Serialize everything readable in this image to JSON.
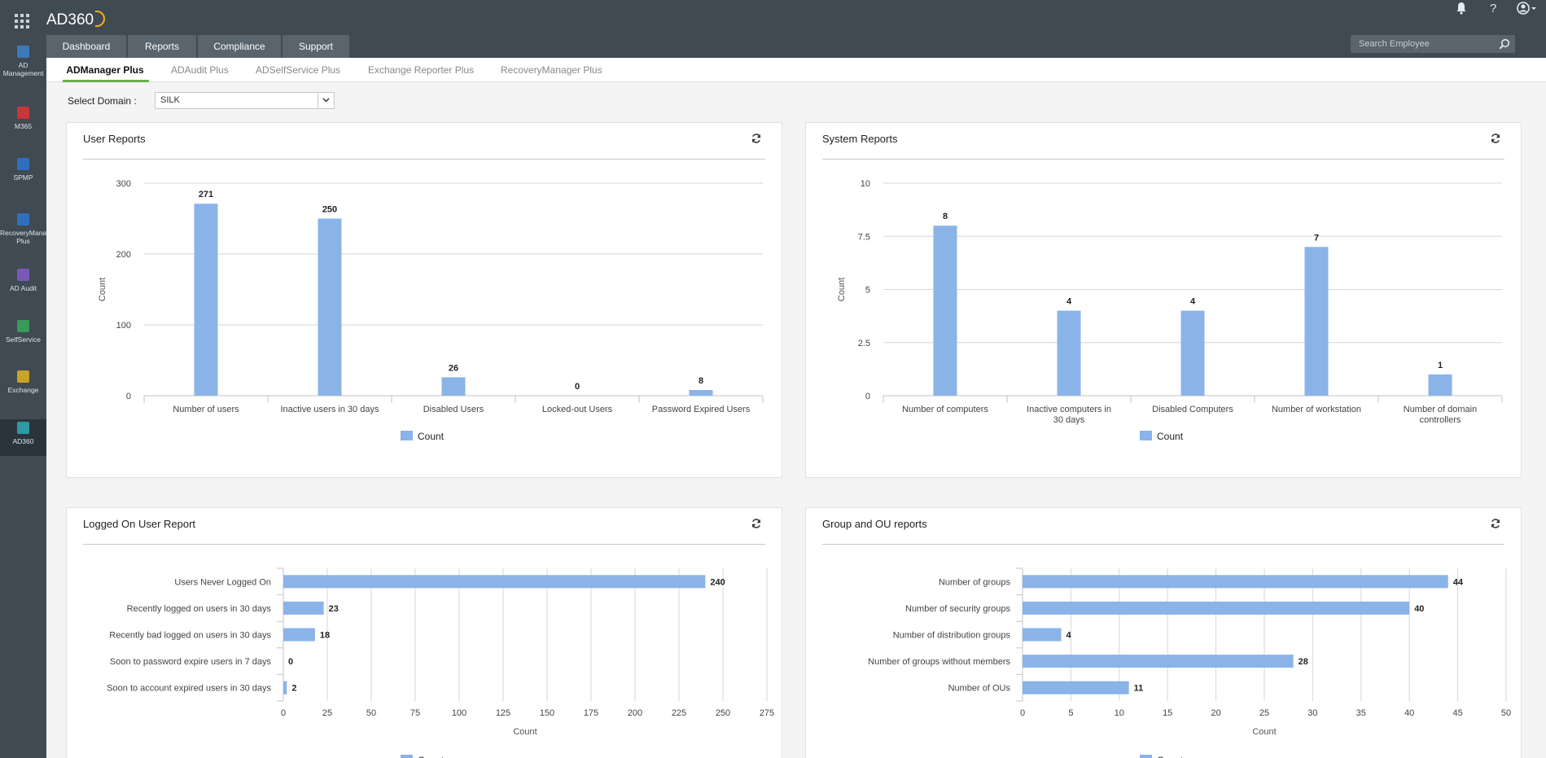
{
  "app": {
    "name": "AD360"
  },
  "rail": [
    {
      "label": "AD Management",
      "lines": [
        "AD",
        "Management"
      ],
      "icon": "ad-management-icon",
      "color": "#3d7ab8"
    },
    {
      "label": "M365",
      "lines": [
        "M365"
      ],
      "icon": "m365-icon",
      "color": "#c8363a"
    },
    {
      "label": "SPMP",
      "lines": [
        "SPMP"
      ],
      "icon": "spmp-icon",
      "color": "#2f6fbd"
    },
    {
      "label": "RecoveryManager Plus",
      "lines": [
        "RecoveryMana",
        "Plus"
      ],
      "icon": "recovery-icon",
      "color": "#2f6fbd"
    },
    {
      "label": "AD Audit",
      "lines": [
        "AD Audit"
      ],
      "icon": "ad-audit-icon",
      "color": "#7a58b8"
    },
    {
      "label": "SelfService",
      "lines": [
        "SelfService"
      ],
      "icon": "selfservice-icon",
      "color": "#3a9a58"
    },
    {
      "label": "Exchange",
      "lines": [
        "Exchange"
      ],
      "icon": "exchange-icon",
      "color": "#c9a227"
    },
    {
      "label": "AD360",
      "lines": [
        "AD360"
      ],
      "icon": "ad360-icon",
      "color": "#2e9aa3",
      "badge": "AD\n360"
    }
  ],
  "header_tabs": [
    {
      "label": "Dashboard",
      "active": true
    },
    {
      "label": "Reports",
      "active": false
    },
    {
      "label": "Compliance",
      "active": false
    },
    {
      "label": "Support",
      "active": false
    }
  ],
  "search": {
    "placeholder": "Search Employee"
  },
  "top_icons": [
    "bell-icon",
    "help-icon",
    "user-icon"
  ],
  "help_glyph": "?",
  "sub_tabs": [
    {
      "label": "ADManager Plus",
      "active": true
    },
    {
      "label": "ADAudit Plus",
      "active": false
    },
    {
      "label": "ADSelfService Plus",
      "active": false
    },
    {
      "label": "Exchange Reporter Plus",
      "active": false
    },
    {
      "label": "RecoveryManager Plus",
      "active": false
    }
  ],
  "domain": {
    "label": "Select Domain :",
    "value": "SILK"
  },
  "colors": {
    "bar": "#8ab3e8",
    "header": "#404a53",
    "accent": "#6ab04c"
  },
  "chart_data": [
    {
      "panel_title": "User Reports",
      "type": "bar",
      "categories": [
        "Number of users",
        "Inactive users in 30 days",
        "Disabled Users",
        "Locked-out Users",
        "Password Expired Users"
      ],
      "series": [
        {
          "name": "Count",
          "values": [
            271,
            250,
            26,
            0,
            8
          ]
        }
      ],
      "ylabel": "Count",
      "yticks": [
        0,
        100,
        200,
        300
      ],
      "ylim": [
        0,
        300
      ],
      "legend": "bottom",
      "grid": true
    },
    {
      "panel_title": "System Reports",
      "type": "bar",
      "categories": [
        "Number of computers",
        "Inactive computers in 30 days",
        "Disabled Computers",
        "Number of workstation",
        "Number of domain controllers"
      ],
      "series": [
        {
          "name": "Count",
          "values": [
            8,
            4,
            4,
            7,
            1
          ]
        }
      ],
      "ylabel": "Count",
      "yticks": [
        0,
        2.5,
        5,
        7.5,
        10
      ],
      "ylim": [
        0,
        10
      ],
      "legend": "bottom",
      "grid": true
    },
    {
      "panel_title": "Logged On User Report",
      "type": "bar",
      "orientation": "horizontal",
      "categories": [
        "Users Never Logged On",
        "Recently logged on users in 30 days",
        "Recently bad logged on users in 30 days",
        "Soon to password expire users in 7 days",
        "Soon to account expired users in 30 days"
      ],
      "series": [
        {
          "name": "Count",
          "values": [
            240,
            23,
            18,
            0,
            2
          ]
        }
      ],
      "xlabel": "Count",
      "xticks": [
        0,
        25,
        50,
        75,
        100,
        125,
        150,
        175,
        200,
        225,
        250,
        275
      ],
      "xlim": [
        0,
        275
      ],
      "legend": "bottom",
      "grid": true
    },
    {
      "panel_title": "Group and OU reports",
      "type": "bar",
      "orientation": "horizontal",
      "categories": [
        "Number of groups",
        "Number of security groups",
        "Number of distribution groups",
        "Number of groups without members",
        "Number of OUs"
      ],
      "series": [
        {
          "name": "Count",
          "values": [
            44,
            40,
            4,
            28,
            11
          ]
        }
      ],
      "xlabel": "Count",
      "xticks": [
        0,
        5,
        10,
        15,
        20,
        25,
        30,
        35,
        40,
        45,
        50
      ],
      "xlim": [
        0,
        50
      ],
      "legend": "bottom",
      "grid": true
    }
  ]
}
